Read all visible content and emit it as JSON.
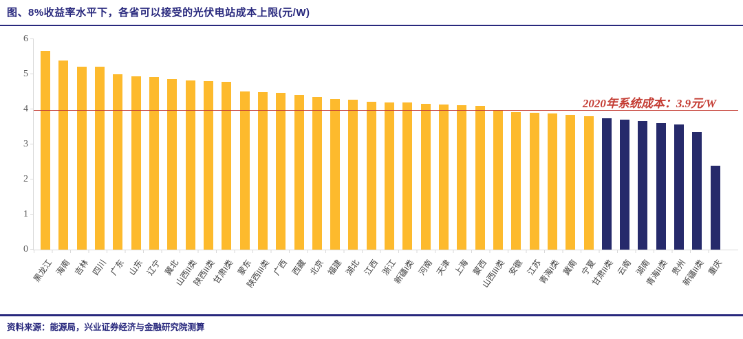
{
  "header": {
    "title": "图、8%收益率水平下，各省可以接受的光伏电站成本上限(元/W)"
  },
  "footer": {
    "source": "资料来源：能源局，兴业证券经济与金融研究院测算"
  },
  "colors": {
    "navy": "#28287D",
    "red": "#C43C33",
    "bar_orange": "#FDBA2D",
    "bar_navy": "#262A6B",
    "axis_gray": "#D9D9D9",
    "tick_text_gray": "#595959",
    "label_text_gray": "#3F3F3F"
  },
  "chart_data": {
    "type": "bar",
    "title": "图、8%收益率水平下，各省可以接受的光伏电站成本上限(元/W)",
    "xlabel": "",
    "ylabel": "",
    "ylim": [
      0,
      6
    ],
    "yticks": [
      0,
      1,
      2,
      3,
      4,
      5,
      6
    ],
    "grid": false,
    "legend": false,
    "categories": [
      "黑龙江",
      "海南",
      "吉林",
      "四川",
      "广东",
      "山东",
      "辽宁",
      "冀北",
      "山西II类",
      "陕西II类",
      "甘肃I类",
      "蒙东",
      "陕西III类",
      "广西",
      "西藏",
      "北京",
      "福建",
      "湖北",
      "江西",
      "浙江",
      "新疆I类",
      "河南",
      "天津",
      "上海",
      "蒙西",
      "山西III类",
      "安徽",
      "江苏",
      "青海I类",
      "冀南",
      "宁夏",
      "甘肃II类",
      "云南",
      "湖南",
      "青海II类",
      "贵州",
      "新疆II类",
      "重庆"
    ],
    "values": [
      5.66,
      5.39,
      5.21,
      5.21,
      5.01,
      4.94,
      4.92,
      4.87,
      4.83,
      4.81,
      4.78,
      4.52,
      4.49,
      4.47,
      4.41,
      4.35,
      4.29,
      4.28,
      4.22,
      4.2,
      4.19,
      4.15,
      4.13,
      4.11,
      4.09,
      3.96,
      3.92,
      3.91,
      3.89,
      3.85,
      3.8,
      3.74,
      3.7,
      3.66,
      3.6,
      3.56,
      3.35,
      2.4
    ],
    "bar_colors": {
      "default": "#FDBA2D",
      "highlight": "#262A6B"
    },
    "highlight_from_index": 31,
    "reference_line": {
      "value": 3.9,
      "label": "2020年系统成本：3.9元/W",
      "color": "#C43C33"
    }
  }
}
